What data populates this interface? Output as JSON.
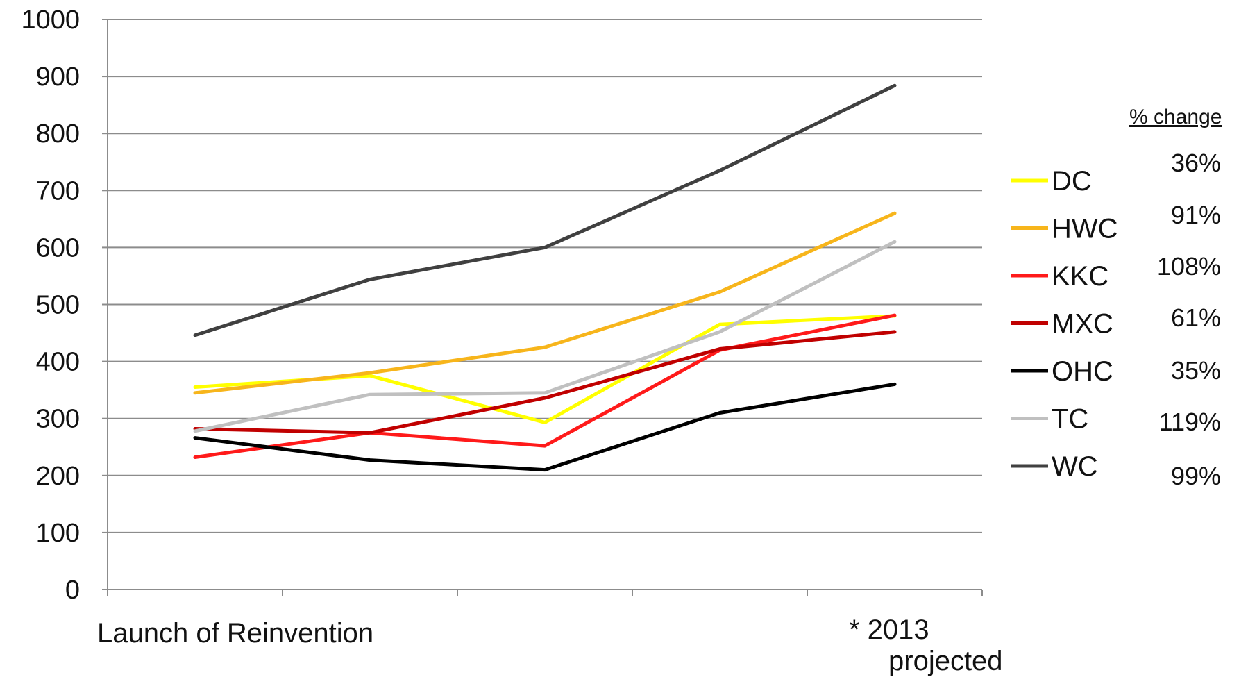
{
  "chart_data": {
    "type": "line",
    "title": "",
    "xlabel": "",
    "ylabel": "",
    "ylim": [
      0,
      1000
    ],
    "y_ticks": [
      "0",
      "100",
      "200",
      "300",
      "400",
      "500",
      "600",
      "700",
      "800",
      "900",
      "1000"
    ],
    "x": [
      1,
      2,
      3,
      4,
      5
    ],
    "x_labels": {
      "start": "Launch of Reinvention",
      "end_line1": "* 2013",
      "end_line2": "projected"
    },
    "grid": true,
    "legend_position": "right",
    "change_header": "% change",
    "series": [
      {
        "name": "DC",
        "color": "#ffff00",
        "values": [
          355,
          375,
          293,
          465,
          480
        ],
        "change": "36%"
      },
      {
        "name": "HWC",
        "color": "#f7b51b",
        "values": [
          345,
          380,
          425,
          522,
          660
        ],
        "change": "91%"
      },
      {
        "name": "KKC",
        "color": "#ff1a1a",
        "values": [
          232,
          275,
          252,
          420,
          481
        ],
        "change": "108%"
      },
      {
        "name": "MXC",
        "color": "#c00000",
        "values": [
          282,
          275,
          336,
          422,
          452
        ],
        "change": "61%"
      },
      {
        "name": "OHC",
        "color": "#000000",
        "values": [
          266,
          227,
          210,
          310,
          360
        ],
        "change": "35%"
      },
      {
        "name": "TC",
        "color": "#c0c0c0",
        "values": [
          278,
          342,
          345,
          452,
          610
        ],
        "change": "119%"
      },
      {
        "name": "WC",
        "color": "#404040",
        "values": [
          446,
          544,
          600,
          735,
          884
        ],
        "change": "99%"
      }
    ]
  }
}
